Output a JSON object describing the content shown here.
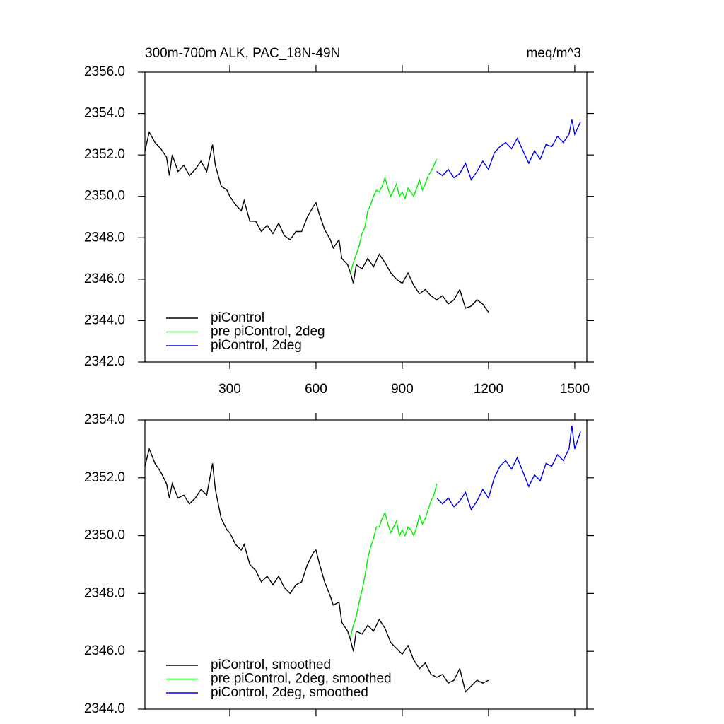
{
  "chart_data": [
    {
      "type": "line",
      "title": "300m-700m ALK, PAC_18N-49N",
      "subtitle": "meq/m^3",
      "xlim": [
        5,
        1542
      ],
      "xticks": [
        300,
        600,
        900,
        1200,
        1500
      ],
      "ylim": [
        2342,
        2356
      ],
      "yticks": [
        {
          "value": 2342,
          "label": "2342.0"
        },
        {
          "value": 2344,
          "label": "2344.0"
        },
        {
          "value": 2346,
          "label": "2346.0"
        },
        {
          "value": 2348,
          "label": "2348.0"
        },
        {
          "value": 2350,
          "label": "2350.0"
        },
        {
          "value": 2352,
          "label": "2352.0"
        },
        {
          "value": 2354,
          "label": "2354.0"
        },
        {
          "value": 2356,
          "label": "2356.0"
        }
      ],
      "legend": "lower left",
      "series": [
        {
          "name": "piControl",
          "color": "#000000",
          "x": [
            5,
            20,
            40,
            60,
            80,
            90,
            100,
            120,
            140,
            160,
            180,
            200,
            220,
            240,
            250,
            270,
            290,
            300,
            320,
            340,
            350,
            370,
            390,
            410,
            430,
            450,
            470,
            490,
            510,
            530,
            550,
            570,
            590,
            600,
            610,
            630,
            650,
            660,
            680,
            690,
            710,
            720,
            730,
            740,
            760,
            780,
            800,
            820,
            840,
            860,
            880,
            900,
            920,
            940,
            960,
            980,
            1000,
            1020,
            1040,
            1060,
            1080,
            1100,
            1120,
            1140,
            1160,
            1180,
            1200
          ],
          "values": [
            2352.2,
            2353.1,
            2352.6,
            2352.3,
            2351.9,
            2351.0,
            2352.0,
            2351.2,
            2351.5,
            2351.0,
            2351.3,
            2351.7,
            2351.2,
            2352.5,
            2351.5,
            2350.5,
            2350.3,
            2350.0,
            2349.6,
            2349.3,
            2349.8,
            2348.8,
            2348.8,
            2348.3,
            2348.6,
            2348.2,
            2348.7,
            2348.1,
            2347.9,
            2348.3,
            2348.3,
            2349.0,
            2349.5,
            2349.7,
            2349.2,
            2348.4,
            2347.9,
            2347.5,
            2347.9,
            2347.0,
            2346.7,
            2346.3,
            2345.8,
            2346.7,
            2346.5,
            2347.0,
            2346.6,
            2347.2,
            2346.8,
            2346.3,
            2346.0,
            2345.8,
            2346.3,
            2345.7,
            2345.3,
            2345.5,
            2345.2,
            2345.0,
            2345.2,
            2344.8,
            2345.0,
            2345.5,
            2344.6,
            2344.7,
            2345.0,
            2344.8,
            2344.4
          ]
        },
        {
          "name": "pre piControl, 2deg",
          "color": "#00ee00",
          "x": [
            720,
            730,
            740,
            750,
            760,
            770,
            780,
            790,
            800,
            810,
            820,
            830,
            840,
            850,
            860,
            870,
            880,
            890,
            900,
            910,
            920,
            930,
            940,
            950,
            960,
            970,
            980,
            990,
            1000,
            1010,
            1020
          ],
          "values": [
            2346.3,
            2346.8,
            2347.2,
            2347.6,
            2348.2,
            2348.5,
            2349.3,
            2349.6,
            2350.0,
            2350.3,
            2350.2,
            2350.5,
            2350.9,
            2350.4,
            2350.0,
            2350.3,
            2350.6,
            2350.0,
            2350.2,
            2349.9,
            2350.4,
            2350.2,
            2350.0,
            2350.4,
            2350.8,
            2350.3,
            2350.6,
            2351.0,
            2351.2,
            2351.5,
            2351.8
          ]
        },
        {
          "name": "piControl, 2deg",
          "color": "#0000ee",
          "x": [
            1020,
            1040,
            1060,
            1080,
            1100,
            1120,
            1140,
            1160,
            1180,
            1200,
            1220,
            1240,
            1260,
            1280,
            1300,
            1320,
            1340,
            1360,
            1380,
            1400,
            1420,
            1440,
            1460,
            1480,
            1490,
            1500,
            1510,
            1520
          ],
          "values": [
            2351.2,
            2351.0,
            2351.3,
            2350.9,
            2351.1,
            2351.6,
            2350.8,
            2351.2,
            2351.7,
            2351.3,
            2352.1,
            2352.4,
            2352.6,
            2352.3,
            2352.8,
            2352.2,
            2351.6,
            2352.2,
            2351.8,
            2352.5,
            2352.4,
            2352.9,
            2352.6,
            2353.0,
            2353.7,
            2353.0,
            2353.3,
            2353.6
          ]
        }
      ]
    },
    {
      "type": "line",
      "xlim": [
        5,
        1542
      ],
      "xticks": [
        300,
        600,
        900,
        1200,
        1500
      ],
      "ylim": [
        2344,
        2354
      ],
      "yticks": [
        {
          "value": 2344,
          "label": "2344.0"
        },
        {
          "value": 2346,
          "label": "2346.0"
        },
        {
          "value": 2348,
          "label": "2348.0"
        },
        {
          "value": 2350,
          "label": "2350.0"
        },
        {
          "value": 2352,
          "label": "2352.0"
        },
        {
          "value": 2354,
          "label": "2354.0"
        }
      ],
      "legend": "lower left",
      "series": [
        {
          "name": "piControl, smoothed",
          "color": "#000000",
          "x": [
            5,
            20,
            40,
            60,
            80,
            90,
            100,
            120,
            140,
            160,
            180,
            200,
            220,
            240,
            250,
            270,
            290,
            300,
            320,
            340,
            350,
            370,
            390,
            410,
            430,
            450,
            470,
            490,
            510,
            530,
            550,
            570,
            590,
            600,
            610,
            630,
            650,
            660,
            680,
            690,
            710,
            720,
            730,
            740,
            760,
            780,
            800,
            820,
            840,
            860,
            880,
            900,
            920,
            940,
            960,
            980,
            1000,
            1020,
            1040,
            1060,
            1080,
            1100,
            1120,
            1140,
            1160,
            1180,
            1200
          ],
          "values": [
            2352.4,
            2353.0,
            2352.5,
            2352.2,
            2351.8,
            2351.3,
            2351.8,
            2351.3,
            2351.4,
            2351.1,
            2351.3,
            2351.6,
            2351.4,
            2352.5,
            2351.6,
            2350.6,
            2350.2,
            2350.1,
            2349.7,
            2349.5,
            2349.7,
            2349.0,
            2348.8,
            2348.4,
            2348.6,
            2348.3,
            2348.6,
            2348.2,
            2348.0,
            2348.3,
            2348.4,
            2349.0,
            2349.4,
            2349.5,
            2349.1,
            2348.4,
            2347.9,
            2347.6,
            2347.7,
            2347.0,
            2346.7,
            2346.4,
            2346.0,
            2346.7,
            2346.6,
            2346.9,
            2346.7,
            2347.1,
            2346.8,
            2346.3,
            2346.1,
            2345.9,
            2346.2,
            2345.7,
            2345.4,
            2345.6,
            2345.2,
            2345.1,
            2345.2,
            2344.9,
            2345.0,
            2345.4,
            2344.6,
            2344.8,
            2345.0,
            2344.9,
            2345.0
          ]
        },
        {
          "name": "pre piControl, 2deg, smoothed",
          "color": "#00ee00",
          "x": [
            720,
            730,
            740,
            750,
            760,
            770,
            780,
            790,
            800,
            810,
            820,
            830,
            840,
            850,
            860,
            870,
            880,
            890,
            900,
            910,
            920,
            930,
            940,
            950,
            960,
            970,
            980,
            990,
            1000,
            1010,
            1020
          ],
          "values": [
            2346.5,
            2346.9,
            2347.2,
            2347.7,
            2348.1,
            2348.6,
            2349.2,
            2349.6,
            2349.9,
            2350.3,
            2350.3,
            2350.6,
            2350.8,
            2350.4,
            2350.1,
            2350.3,
            2350.5,
            2350.0,
            2350.2,
            2350.0,
            2350.3,
            2350.2,
            2350.0,
            2350.3,
            2350.7,
            2350.4,
            2350.6,
            2350.9,
            2351.2,
            2351.4,
            2351.8
          ]
        },
        {
          "name": "piControl, 2deg, smoothed",
          "color": "#0000ee",
          "x": [
            1020,
            1040,
            1060,
            1080,
            1100,
            1120,
            1140,
            1160,
            1180,
            1200,
            1220,
            1240,
            1260,
            1280,
            1300,
            1320,
            1340,
            1360,
            1380,
            1400,
            1420,
            1440,
            1460,
            1480,
            1490,
            1500,
            1510,
            1520
          ],
          "values": [
            2351.3,
            2351.1,
            2351.3,
            2351.0,
            2351.2,
            2351.5,
            2350.9,
            2351.2,
            2351.6,
            2351.3,
            2352.0,
            2352.4,
            2352.6,
            2352.3,
            2352.7,
            2352.2,
            2351.7,
            2352.1,
            2351.9,
            2352.5,
            2352.4,
            2352.8,
            2352.6,
            2353.0,
            2353.8,
            2353.0,
            2353.3,
            2353.6
          ]
        }
      ]
    }
  ]
}
